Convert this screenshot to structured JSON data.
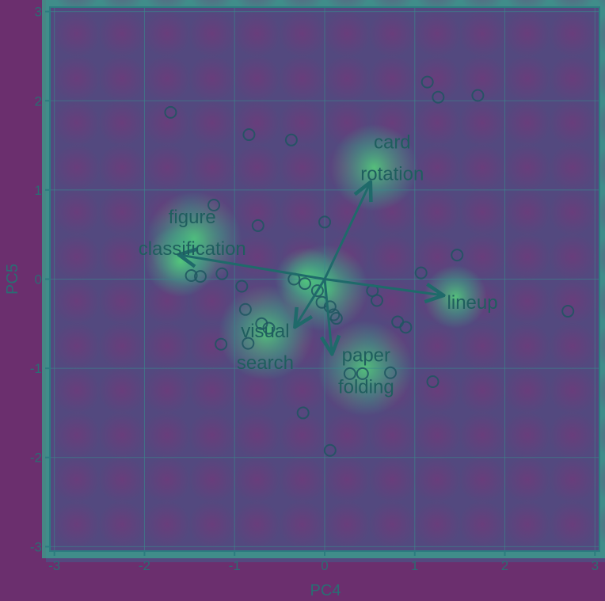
{
  "chart_data": {
    "type": "scatter",
    "subtype": "pca-biplot",
    "title": "",
    "xlabel": "PC4",
    "ylabel": "PC5",
    "xlim": [
      -3.05,
      3.05
    ],
    "ylim": [
      -3.05,
      3.05
    ],
    "xticks": [
      "-3",
      "-2",
      "-1",
      "0",
      "1",
      "2",
      "3"
    ],
    "yticks": [
      "-3",
      "-2",
      "-1",
      "0",
      "1",
      "2",
      "3"
    ],
    "xtick_values": [
      -3,
      -2,
      -1,
      0,
      1,
      2,
      3
    ],
    "ytick_values": [
      -3,
      -2,
      -1,
      0,
      1,
      2,
      3
    ],
    "grid": true,
    "points": [
      {
        "x": -1.71,
        "y": 1.87
      },
      {
        "x": -0.84,
        "y": 1.62
      },
      {
        "x": -0.37,
        "y": 1.56
      },
      {
        "x": 1.14,
        "y": 2.21
      },
      {
        "x": 1.26,
        "y": 2.04
      },
      {
        "x": 1.7,
        "y": 2.06
      },
      {
        "x": -1.23,
        "y": 0.83
      },
      {
        "x": -0.74,
        "y": 0.6
      },
      {
        "x": 0.0,
        "y": 0.64
      },
      {
        "x": 1.47,
        "y": 0.27
      },
      {
        "x": 1.07,
        "y": 0.07
      },
      {
        "x": -1.48,
        "y": 0.04
      },
      {
        "x": -1.38,
        "y": 0.03
      },
      {
        "x": -1.14,
        "y": 0.06
      },
      {
        "x": -0.92,
        "y": -0.08
      },
      {
        "x": -0.34,
        "y": 0.0
      },
      {
        "x": -0.22,
        "y": -0.05
      },
      {
        "x": -0.08,
        "y": -0.13
      },
      {
        "x": -0.03,
        "y": -0.26
      },
      {
        "x": 0.06,
        "y": -0.31
      },
      {
        "x": 0.1,
        "y": -0.4
      },
      {
        "x": 0.13,
        "y": -0.44
      },
      {
        "x": 0.53,
        "y": -0.13
      },
      {
        "x": 0.58,
        "y": -0.24
      },
      {
        "x": -0.88,
        "y": -0.34
      },
      {
        "x": -0.7,
        "y": -0.5
      },
      {
        "x": -0.62,
        "y": -0.55
      },
      {
        "x": -1.15,
        "y": -0.73
      },
      {
        "x": -0.85,
        "y": -0.72
      },
      {
        "x": 0.81,
        "y": -0.48
      },
      {
        "x": 0.9,
        "y": -0.54
      },
      {
        "x": 0.28,
        "y": -1.06
      },
      {
        "x": 0.42,
        "y": -1.06
      },
      {
        "x": 0.73,
        "y": -1.05
      },
      {
        "x": 1.2,
        "y": -1.15
      },
      {
        "x": -0.24,
        "y": -1.5
      },
      {
        "x": 0.06,
        "y": -1.92
      },
      {
        "x": 2.7,
        "y": -0.36
      }
    ],
    "loadings": [
      {
        "label_lines": [
          "card",
          "rotation"
        ],
        "x": 0.5,
        "y": 1.07,
        "label_x": 0.75,
        "label_y": 1.36
      },
      {
        "label_lines": [
          "figure",
          "classification"
        ],
        "x": -1.6,
        "y": 0.27,
        "label_x": -1.47,
        "label_y": 0.52
      },
      {
        "label_lines": [
          "lineup"
        ],
        "x": 1.3,
        "y": -0.18,
        "label_x": 1.64,
        "label_y": -0.26
      },
      {
        "label_lines": [
          "visual",
          "search"
        ],
        "x": -0.32,
        "y": -0.52,
        "label_x": -0.66,
        "label_y": -0.76
      },
      {
        "label_lines": [
          "paper",
          "folding"
        ],
        "x": 0.08,
        "y": -0.82,
        "label_x": 0.46,
        "label_y": -1.03
      }
    ],
    "heatmap_overlay": true,
    "colors": {
      "background": "#6b2f6e",
      "overlay_mid": "#2d6e8a",
      "overlay_hot": "#3fc07a",
      "grid": "#3a8a8c",
      "points": "#1f5560",
      "arrows": "#1f6a6a",
      "labels": "#1f5e5e"
    }
  }
}
